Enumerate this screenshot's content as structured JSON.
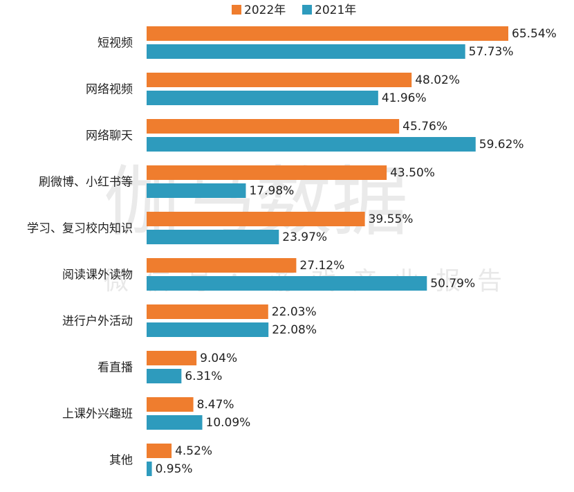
{
  "chart_data": {
    "type": "bar",
    "orientation": "horizontal",
    "categories": [
      "短视频",
      "网络视频",
      "网络聊天",
      "刷微博、小红书等",
      "学习、复习校内知识",
      "阅读课外读物",
      "进行户外活动",
      "看直播",
      "上课外兴趣班",
      "其他"
    ],
    "series": [
      {
        "name": "2022年",
        "color": "#ef7d2e",
        "values": [
          65.54,
          48.02,
          45.76,
          43.5,
          39.55,
          27.12,
          22.03,
          9.04,
          8.47,
          4.52
        ],
        "labels": [
          "65.54%",
          "48.02%",
          "45.76%",
          "43.50%",
          "39.55%",
          "27.12%",
          "22.03%",
          "9.04%",
          "8.47%",
          "4.52%"
        ]
      },
      {
        "name": "2021年",
        "color": "#2e9bbd",
        "values": [
          57.73,
          41.96,
          59.62,
          17.98,
          23.97,
          50.79,
          22.08,
          6.31,
          10.09,
          0.95
        ],
        "labels": [
          "57.73%",
          "41.96%",
          "59.62%",
          "17.98%",
          "23.97%",
          "50.79%",
          "22.08%",
          "6.31%",
          "10.09%",
          "0.95%"
        ]
      }
    ],
    "xlim": [
      0,
      70
    ],
    "grid": false,
    "legend_position": "top-center"
  },
  "watermark": {
    "main": "伽马数据",
    "sub": "微信号：游戏产业报告"
  }
}
